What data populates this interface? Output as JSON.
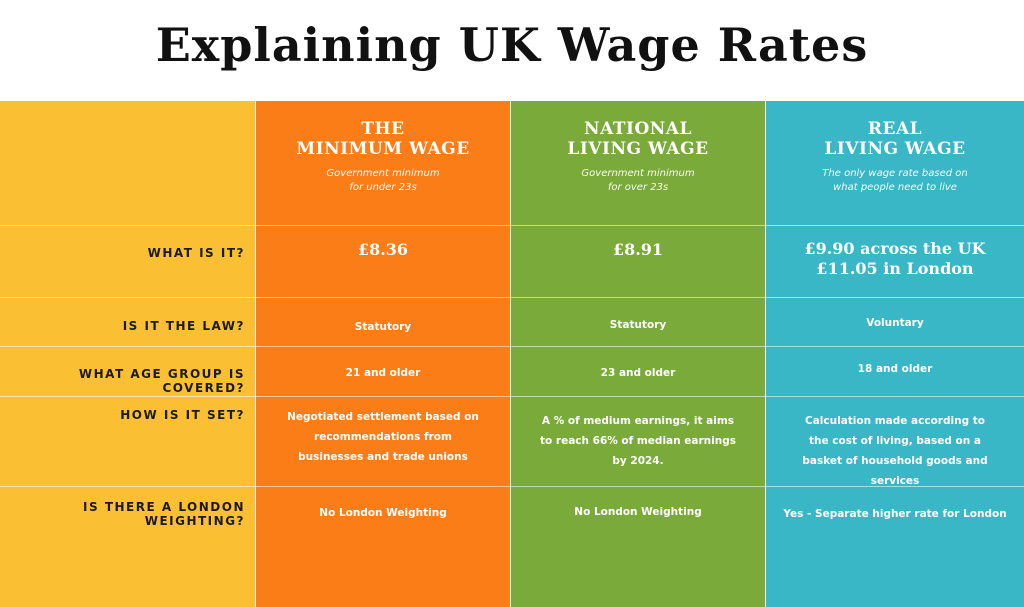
{
  "title": "Explaining UK Wage Rates",
  "row_labels": [
    "WHAT IS IT?",
    "IS IT THE LAW?",
    "WHAT AGE GROUP IS COVERED?",
    "HOW IS IT SET?",
    "IS THERE A LONDON WEIGHTING?"
  ],
  "columns": [
    {
      "title": "THE\nMINIMUM WAGE",
      "subtitle": "Government minimum\nfor under 23s",
      "what": "£8.36",
      "law": "Statutory",
      "age": "21 and older",
      "how": "Negotiated settlement based on recommendations from businesses and trade unions",
      "london": "No London Weighting",
      "color": "#fb7d17"
    },
    {
      "title": "NATIONAL\nLIVING WAGE",
      "subtitle": "Government minimum\nfor over 23s",
      "what": "£8.91",
      "law": "Statutory",
      "age": "23 and older",
      "how": "A % of medium earnings, it aims to reach 66% of median earnings by 2024.",
      "london": "No London Weighting",
      "color": "#7aab3a"
    },
    {
      "title": "REAL\nLIVING WAGE",
      "subtitle": "The only wage rate based on\nwhat people need to live",
      "what": "£9.90 across the UK\n£11.05 in London",
      "law": "Voluntary",
      "age": "18 and older",
      "how": "Calculation made according to the cost of living, based on a basket of household goods and services",
      "london": "Yes - Separate higher rate for London",
      "color": "#3ab7c7"
    }
  ],
  "label_column_color": "#fbbf33"
}
